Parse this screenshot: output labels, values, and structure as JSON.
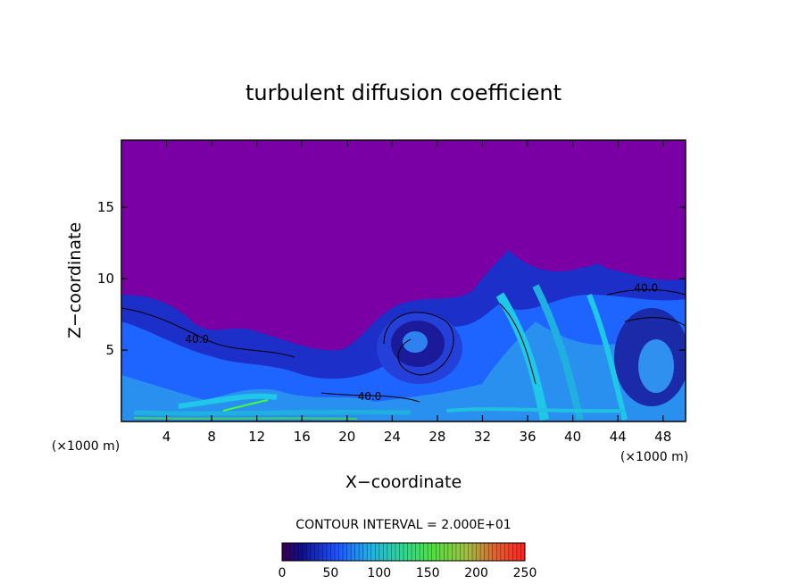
{
  "chart_data": {
    "type": "heatmap",
    "title": "turbulent diffusion coefficient",
    "xlabel": "X−coordinate",
    "ylabel": "Z−coordinate",
    "x_unit_left": "(×1000 m)",
    "x_unit_right": "(×1000 m)",
    "xlim": [
      0,
      50
    ],
    "ylim": [
      0,
      19.7
    ],
    "x_ticks": [
      4,
      8,
      12,
      16,
      20,
      24,
      28,
      32,
      36,
      40,
      44,
      48
    ],
    "y_ticks": [
      5,
      10,
      15
    ],
    "contour_interval_label": "CONTOUR INTERVAL = 2.000E+01",
    "contour_labels": [
      {
        "text": "40.0",
        "x": 46.5,
        "y": 9.1
      },
      {
        "text": "40.0",
        "x": 6.7,
        "y": 5.5
      },
      {
        "text": "40.0",
        "x": 22.0,
        "y": 1.5
      }
    ],
    "colorbar": {
      "min": 0,
      "max": 250,
      "tick_values": [
        0,
        50,
        100,
        150,
        200,
        250
      ],
      "tick_labels": [
        "0",
        "50",
        "100",
        "150",
        "200",
        "250"
      ]
    },
    "background_color": "#7a00a6",
    "colors": {
      "low": "#0a0a8c",
      "mid_blue": "#1e64ff",
      "cyan": "#20b0e0",
      "green": "#40ff40",
      "red": "#ff2020"
    }
  }
}
